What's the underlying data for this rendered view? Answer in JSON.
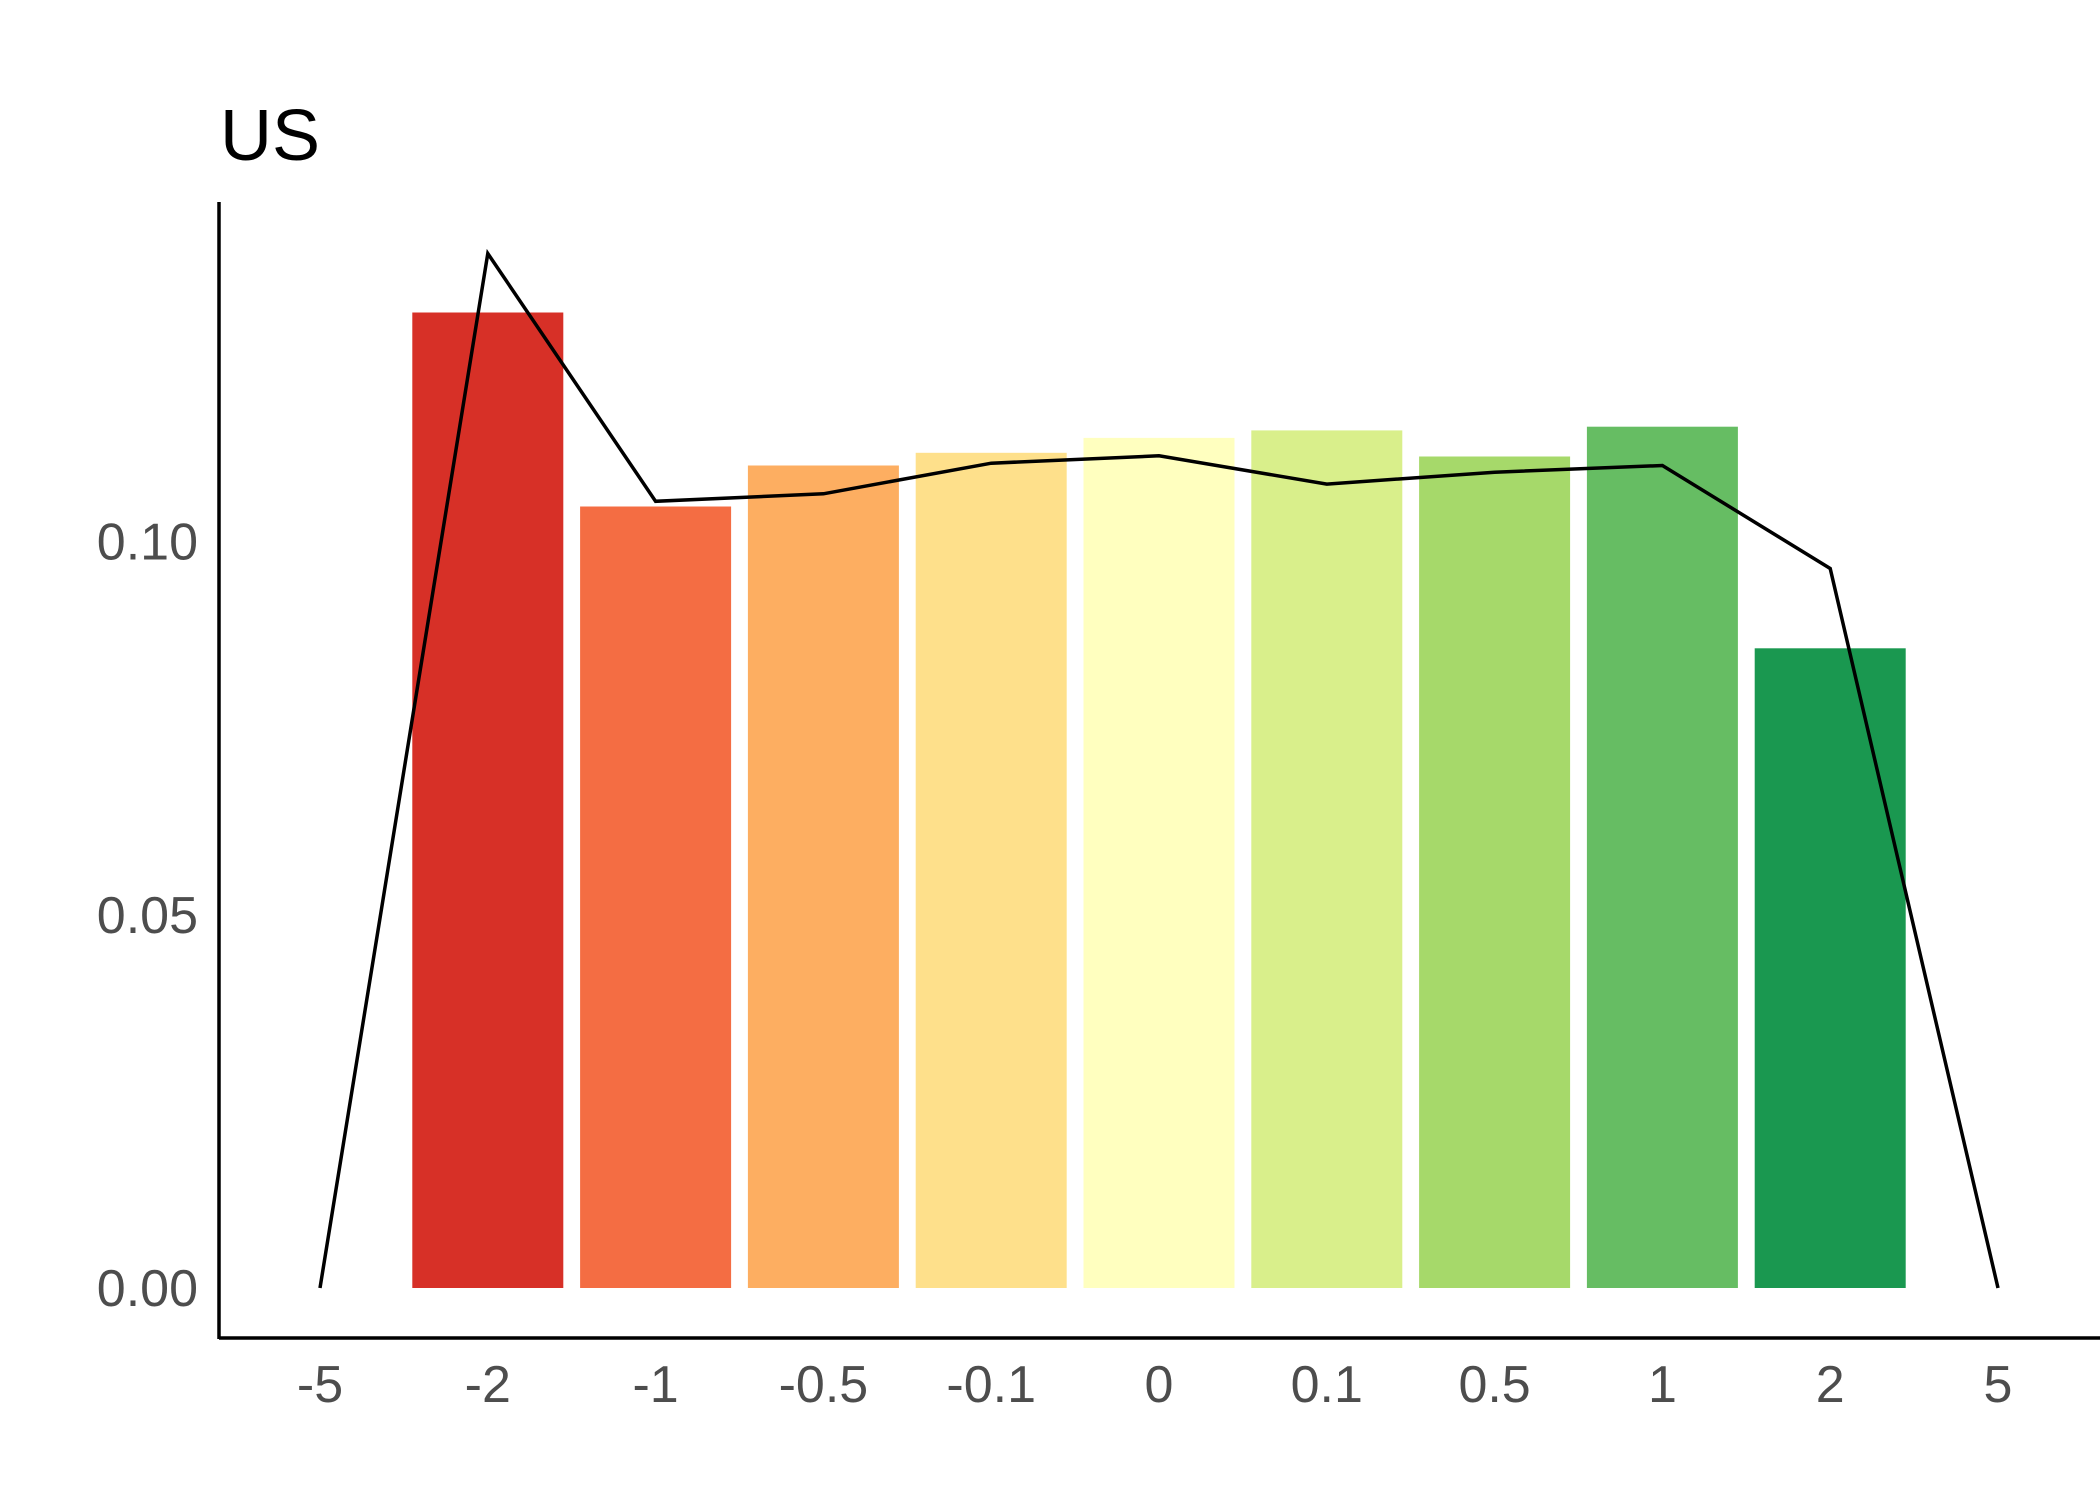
{
  "chart_data": {
    "type": "bar",
    "title": "US",
    "xlabel": "",
    "ylabel": "",
    "ylim": [
      -0.0067,
      0.1455
    ],
    "yticks": [
      "0.00",
      "0.05",
      "0.10"
    ],
    "ytick_values": [
      0.0,
      0.05,
      0.1
    ],
    "categories": [
      "-5",
      "-2",
      "-1",
      "-0.5",
      "-0.1",
      "0",
      "0.1",
      "0.5",
      "1",
      "2",
      "5"
    ],
    "bars": {
      "categories": [
        "-2",
        "-1",
        "-0.5",
        "-0.1",
        "0",
        "0.1",
        "0.5",
        "1",
        "2"
      ],
      "values": [
        0.1307,
        0.1047,
        0.1102,
        0.1119,
        0.1139,
        0.1149,
        0.1114,
        0.1154,
        0.0857
      ],
      "colors": [
        "#d73027",
        "#f46d43",
        "#fdae61",
        "#fee08b",
        "#ffffbf",
        "#d9ef8b",
        "#a6d96a",
        "#66bd63",
        "#1a9850"
      ]
    },
    "line": {
      "categories": [
        "-5",
        "-2",
        "-1",
        "-0.5",
        "-0.1",
        "0",
        "0.1",
        "0.5",
        "1",
        "2",
        "5"
      ],
      "values": [
        0.0,
        0.1386,
        0.1054,
        0.1064,
        0.1105,
        0.1115,
        0.1077,
        0.1093,
        0.1102,
        0.0964,
        0.0
      ],
      "color": "#000000"
    },
    "legend": "none",
    "grid": false
  }
}
